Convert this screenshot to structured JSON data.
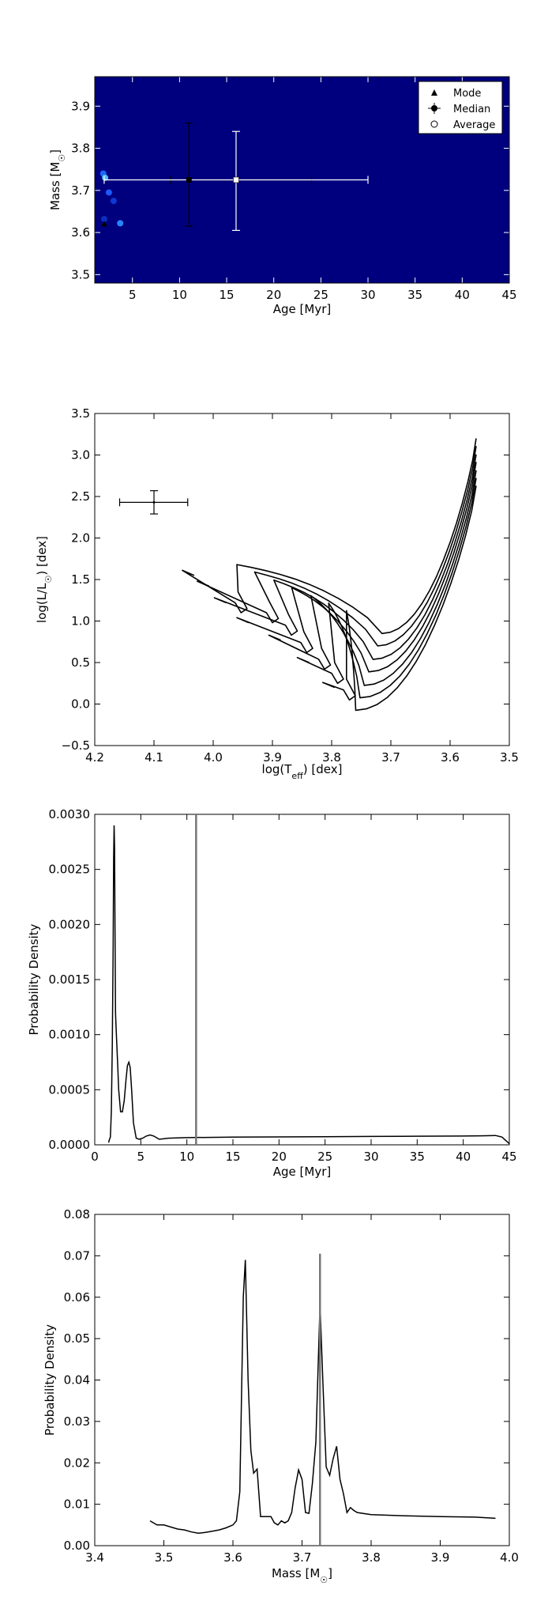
{
  "chart_data": [
    {
      "type": "heatmap",
      "xlabel": "Age [Myr]",
      "ylabel": "Mass [M☉]",
      "xlim": [
        1,
        45
      ],
      "ylim": [
        3.48,
        3.97
      ],
      "xticks": [
        5,
        10,
        15,
        20,
        25,
        30,
        35,
        40,
        45
      ],
      "yticks": [
        3.5,
        3.6,
        3.7,
        3.8,
        3.9
      ],
      "ytick_labels": [
        "3.5",
        "3.6",
        "3.7",
        "3.8",
        "3.9"
      ],
      "background_color": "#00007f",
      "legend": {
        "placement": "top-right",
        "entries": [
          "Mode",
          "Median",
          "Average"
        ]
      },
      "hotspots": [
        {
          "x": 1.9,
          "y": 3.74,
          "color": "#1e6bff"
        },
        {
          "x": 2.1,
          "y": 3.73,
          "color": "#52c5ff"
        },
        {
          "x": 2.5,
          "y": 3.695,
          "color": "#1f5dff"
        },
        {
          "x": 3.0,
          "y": 3.675,
          "color": "#0f3bd6"
        },
        {
          "x": 3.7,
          "y": 3.622,
          "color": "#2c8bff"
        },
        {
          "x": 2.0,
          "y": 3.632,
          "color": "#0d2fc0"
        }
      ],
      "points": {
        "mode": {
          "x": 2.0,
          "y": 3.62
        },
        "median": {
          "x": 11.0,
          "y": 3.725,
          "xerr": [
            9.0,
            24.0
          ],
          "yerr": [
            3.615,
            3.86
          ]
        },
        "average": {
          "x": 16.0,
          "y": 3.725,
          "xerr": [
            2.0,
            30.0
          ],
          "yerr": [
            3.605,
            3.84
          ]
        }
      }
    },
    {
      "type": "line",
      "xlabel": "log(Teff) [dex]",
      "ylabel": "log(L/L☉) [dex]",
      "xlim": [
        4.2,
        3.5
      ],
      "ylim": [
        -0.5,
        3.5
      ],
      "xticks": [
        4.2,
        4.1,
        4.0,
        3.9,
        3.8,
        3.7,
        3.6,
        3.5
      ],
      "xtick_labels": [
        "4.2",
        "4.1",
        "4.0",
        "3.9",
        "3.8",
        "3.7",
        "3.6",
        "3.5"
      ],
      "yticks": [
        -0.5,
        0.0,
        0.5,
        1.0,
        1.5,
        2.0,
        2.5,
        3.0,
        3.5
      ],
      "ytick_labels": [
        "−0.5",
        "0.0",
        "0.5",
        "1.0",
        "1.5",
        "2.0",
        "2.5",
        "3.0",
        "3.5"
      ],
      "errorbar_point": {
        "x": 4.1,
        "y": 2.43,
        "xerr": [
          4.043,
          4.158
        ],
        "yerr": [
          2.29,
          2.57
        ]
      },
      "isochrones": [
        {
          "offset": 0.0,
          "knot_x": 3.953,
          "knot_y": 1.1,
          "start_x": 4.032,
          "start_y": 1.55
        },
        {
          "offset": 0.12,
          "knot_x": 3.9,
          "knot_y": 0.98,
          "start_x": 4.007,
          "start_y": 1.42
        },
        {
          "offset": 0.25,
          "knot_x": 3.868,
          "knot_y": 0.83,
          "start_x": 3.978,
          "start_y": 1.22
        },
        {
          "offset": 0.37,
          "knot_x": 3.842,
          "knot_y": 0.62,
          "start_x": 3.94,
          "start_y": 0.98
        },
        {
          "offset": 0.5,
          "knot_x": 3.812,
          "knot_y": 0.42,
          "start_x": 3.886,
          "start_y": 0.77
        },
        {
          "offset": 0.62,
          "knot_x": 3.79,
          "knot_y": 0.25,
          "start_x": 3.838,
          "start_y": 0.5
        },
        {
          "offset": 0.74,
          "knot_x": 3.77,
          "knot_y": 0.05,
          "start_x": 3.795,
          "start_y": 0.2
        }
      ]
    },
    {
      "type": "line",
      "xlabel": "Age [Myr]",
      "ylabel": "Probability Density",
      "xlim": [
        0,
        45
      ],
      "ylim": [
        0,
        0.003
      ],
      "xticks": [
        0,
        5,
        10,
        15,
        20,
        25,
        30,
        35,
        40,
        45
      ],
      "yticks": [
        0,
        0.0005,
        0.001,
        0.0015,
        0.002,
        0.0025,
        0.003
      ],
      "ytick_labels": [
        "0.0000",
        "0.0005",
        "0.0010",
        "0.0015",
        "0.0020",
        "0.0025",
        "0.0030"
      ],
      "vline": 11.0,
      "x": [
        1.5,
        1.6,
        1.7,
        1.8,
        1.9,
        2.0,
        2.05,
        2.1,
        2.15,
        2.2,
        2.25,
        2.3,
        2.4,
        2.5,
        2.6,
        2.8,
        3.0,
        3.2,
        3.4,
        3.55,
        3.7,
        3.85,
        4.0,
        4.2,
        4.5,
        4.8,
        5.2,
        5.6,
        6.0,
        6.4,
        7.0,
        8.0,
        10.0,
        15.0,
        20.0,
        25.0,
        30.0,
        35.0,
        40.0,
        42.0,
        43.5,
        44.2,
        45.0
      ],
      "y": [
        2e-05,
        5e-05,
        7e-05,
        0.0003,
        0.0009,
        0.0018,
        0.0026,
        0.0029,
        0.0027,
        0.0019,
        0.0012,
        0.0011,
        0.0009,
        0.0007,
        0.0005,
        0.0003,
        0.0003,
        0.0004,
        0.0006,
        0.00072,
        0.00075,
        0.0007,
        0.0005,
        0.0002,
        6e-05,
        5e-05,
        6e-05,
        8e-05,
        9e-05,
        8e-05,
        5e-05,
        6e-05,
        6.5e-05,
        7e-05,
        7.2e-05,
        7.4e-05,
        7.6e-05,
        7.8e-05,
        8e-05,
        8.2e-05,
        8.5e-05,
        7e-05,
        1e-05
      ]
    },
    {
      "type": "line",
      "xlabel": "Mass [M☉]",
      "ylabel": "Probability Density",
      "xlim": [
        3.4,
        4.0
      ],
      "ylim": [
        0,
        0.08
      ],
      "xticks": [
        3.4,
        3.5,
        3.6,
        3.7,
        3.8,
        3.9,
        4.0
      ],
      "xtick_labels": [
        "3.4",
        "3.5",
        "3.6",
        "3.7",
        "3.8",
        "3.9",
        "4.0"
      ],
      "yticks": [
        0,
        0.01,
        0.02,
        0.03,
        0.04,
        0.05,
        0.06,
        0.07,
        0.08
      ],
      "ytick_labels": [
        "0.00",
        "0.01",
        "0.02",
        "0.03",
        "0.04",
        "0.05",
        "0.06",
        "0.07",
        "0.08"
      ],
      "vline": 3.726,
      "x": [
        3.48,
        3.49,
        3.5,
        3.51,
        3.52,
        3.53,
        3.54,
        3.55,
        3.56,
        3.57,
        3.58,
        3.59,
        3.6,
        3.605,
        3.61,
        3.615,
        3.618,
        3.622,
        3.626,
        3.63,
        3.635,
        3.64,
        3.645,
        3.655,
        3.66,
        3.665,
        3.67,
        3.675,
        3.68,
        3.685,
        3.69,
        3.695,
        3.7,
        3.705,
        3.71,
        3.715,
        3.72,
        3.726,
        3.73,
        3.735,
        3.74,
        3.745,
        3.75,
        3.755,
        3.76,
        3.765,
        3.77,
        3.775,
        3.78,
        3.8,
        3.85,
        3.9,
        3.95,
        3.98
      ],
      "y": [
        0.006,
        0.005,
        0.005,
        0.0045,
        0.004,
        0.0038,
        0.0033,
        0.003,
        0.0032,
        0.0035,
        0.0038,
        0.0043,
        0.005,
        0.006,
        0.013,
        0.06,
        0.069,
        0.04,
        0.023,
        0.0175,
        0.0185,
        0.007,
        0.007,
        0.007,
        0.0055,
        0.005,
        0.006,
        0.0055,
        0.006,
        0.008,
        0.014,
        0.0183,
        0.016,
        0.008,
        0.0078,
        0.015,
        0.025,
        0.0585,
        0.04,
        0.019,
        0.017,
        0.021,
        0.024,
        0.016,
        0.0125,
        0.008,
        0.0092,
        0.0085,
        0.008,
        0.0075,
        0.0072,
        0.007,
        0.0069,
        0.0066
      ]
    }
  ]
}
